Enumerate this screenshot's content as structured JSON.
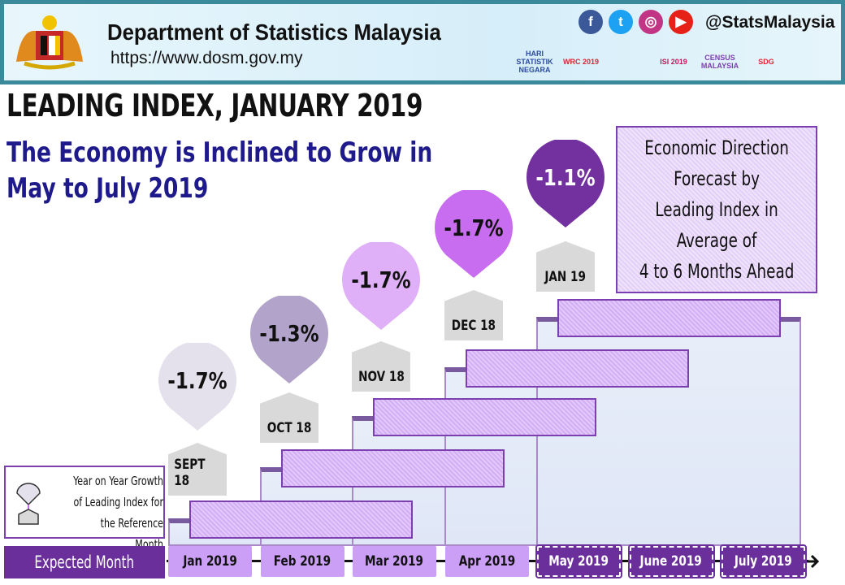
{
  "header": {
    "org": "Department of Statistics Malaysia",
    "url": "https://www.dosm.gov.my",
    "social_handle": "@StatsMalaysia",
    "social_icons": [
      {
        "name": "facebook-icon",
        "glyph": "f",
        "color": "#3b5998"
      },
      {
        "name": "twitter-icon",
        "glyph": "t",
        "color": "#1da1f2"
      },
      {
        "name": "instagram-icon",
        "glyph": "◎",
        "color": "#c13584"
      },
      {
        "name": "youtube-icon",
        "glyph": "▶",
        "color": "#e62117"
      }
    ],
    "logos": [
      "HARI STATISTIK NEGARA",
      "WRC 2019",
      "",
      "ISI 2019",
      "CENSUS MALAYSIA",
      "SDG"
    ]
  },
  "title": "LEADING INDEX, JANUARY 2019",
  "subtitle": "The Economy is Inclined to Grow in May to July 2019",
  "forecast_box": {
    "lines": [
      "Economic Direction",
      "Forecast by",
      "Leading Index in",
      "Average of",
      "4 to 6 Months Ahead"
    ]
  },
  "reference_months": [
    {
      "label": "SEPT 18",
      "value": "-1.7%",
      "color": "#e4e0ec"
    },
    {
      "label": "OCT 18",
      "value": "-1.3%",
      "color": "#b1a3c9"
    },
    {
      "label": "NOV 18",
      "value": "-1.7%",
      "color": "#dfb0f8"
    },
    {
      "label": "DEC 18",
      "value": "-1.7%",
      "color": "#c86cf0"
    },
    {
      "label": "JAN 19",
      "value": "-1.1%",
      "color": "#73309f"
    }
  ],
  "legend": {
    "text": "Year on Year Growth of Leading Index for the Reference Month"
  },
  "timeline": {
    "label": "Expected Month",
    "months": [
      {
        "label": "Jan 2019",
        "state": "past"
      },
      {
        "label": "Feb 2019",
        "state": "past"
      },
      {
        "label": "Mar 2019",
        "state": "past"
      },
      {
        "label": "Apr 2019",
        "state": "past"
      },
      {
        "label": "May 2019",
        "state": "future"
      },
      {
        "label": "June 2019",
        "state": "future"
      },
      {
        "label": "July 2019",
        "state": "future"
      }
    ]
  },
  "colors": {
    "brand_purple": "#6a2f9b",
    "month_past": "#cc9ff7",
    "header_border": "#3b8a9c",
    "subtitle": "#1e1a8c"
  }
}
